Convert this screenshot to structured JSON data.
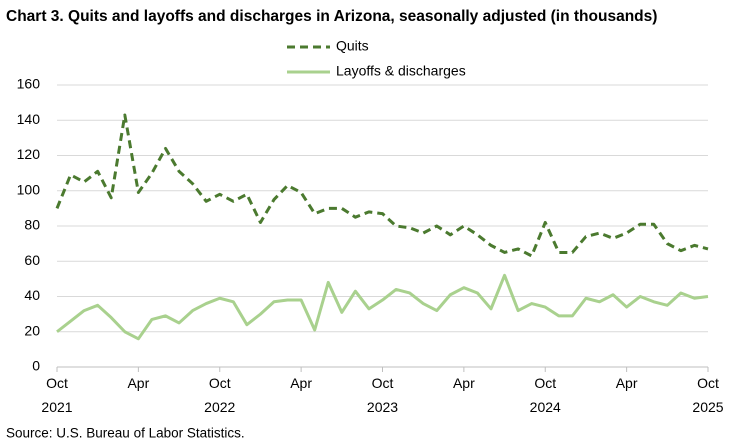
{
  "chart_data": {
    "type": "line",
    "title": "Chart 3. Quits and layoffs and discharges in Arizona, seasonally adjusted (in thousands)",
    "source": "Source: U.S. Bureau of Labor Statistics.",
    "categories": [
      "Oct 2021",
      null,
      null,
      null,
      null,
      null,
      "Apr",
      null,
      null,
      null,
      null,
      null,
      "Oct 2022",
      null,
      null,
      null,
      null,
      null,
      "Apr",
      null,
      null,
      null,
      null,
      null,
      "Oct 2023",
      null,
      null,
      null,
      null,
      null,
      "Apr",
      null,
      null,
      null,
      null,
      null,
      "Oct 2024",
      null,
      null,
      null,
      null,
      null,
      "Apr",
      null,
      null,
      null,
      null,
      null,
      "Oct 2025"
    ],
    "series": [
      {
        "name": "Quits",
        "color": "#4b7a2f",
        "dashed": true,
        "values": [
          90,
          109,
          105,
          111,
          96,
          143,
          99,
          110,
          124,
          111,
          104,
          94,
          98,
          94,
          98,
          82,
          95,
          103,
          99,
          87,
          90,
          90,
          85,
          88,
          87,
          80,
          79,
          76,
          80,
          75,
          80,
          75,
          69,
          65,
          67,
          63,
          82,
          65,
          65,
          74,
          76,
          73,
          76,
          81,
          81,
          70,
          66,
          69,
          67
        ]
      },
      {
        "name": "Layoffs & discharges",
        "color": "#a9d18e",
        "dashed": false,
        "values": [
          20,
          26,
          32,
          35,
          28,
          20,
          16,
          27,
          29,
          25,
          32,
          36,
          39,
          37,
          24,
          30,
          37,
          38,
          38,
          21,
          48,
          31,
          43,
          33,
          38,
          44,
          42,
          36,
          32,
          41,
          45,
          42,
          33,
          52,
          32,
          36,
          34,
          29,
          29,
          39,
          37,
          41,
          34,
          40,
          37,
          35,
          42,
          39,
          40
        ]
      }
    ],
    "ylim": [
      0,
      160
    ],
    "yticks": [
      0,
      20,
      40,
      60,
      80,
      100,
      120,
      140,
      160
    ],
    "grid": true
  }
}
